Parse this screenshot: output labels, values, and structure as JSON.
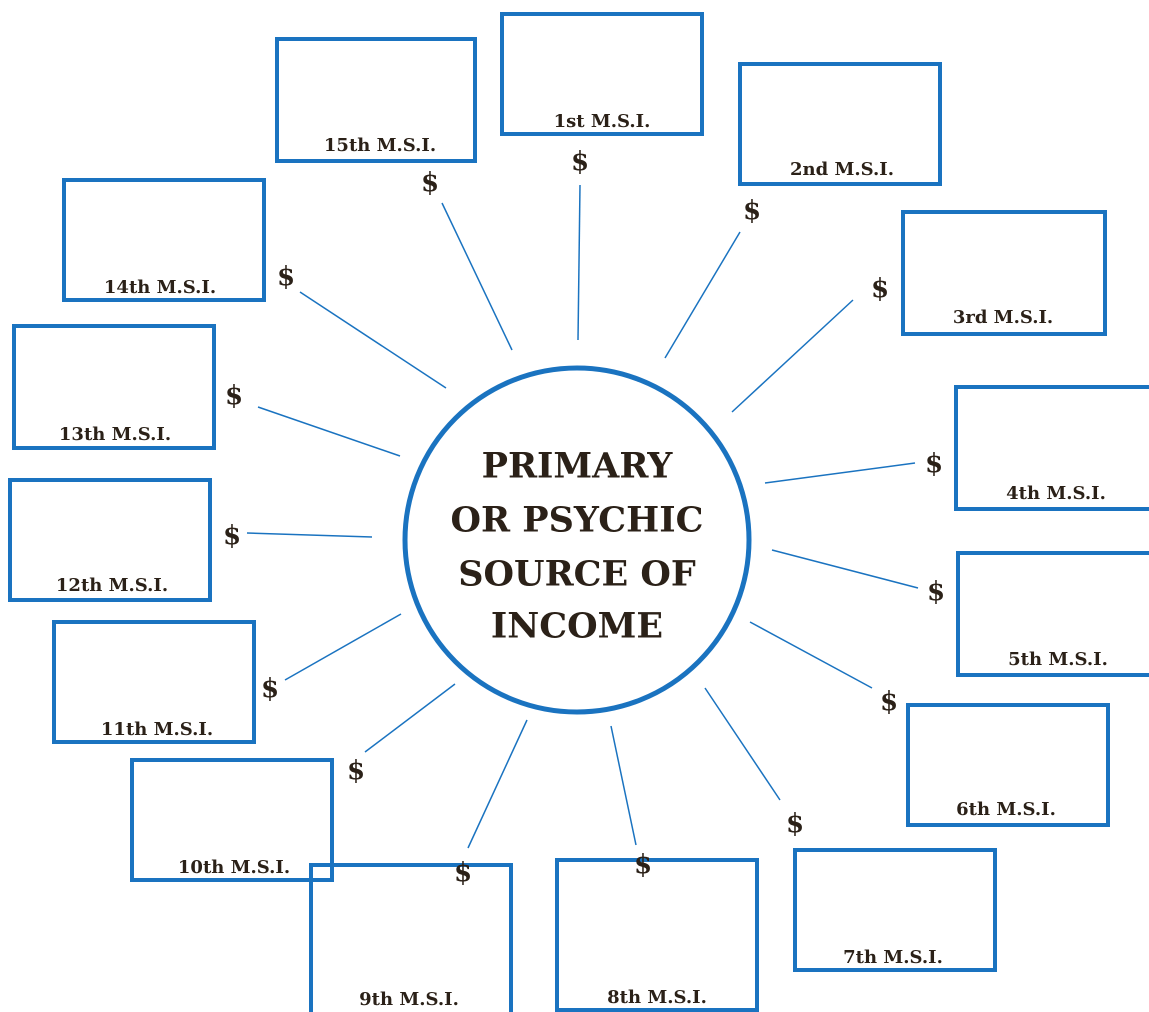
{
  "center": {
    "lines": [
      "PRIMARY",
      "OR PSYCHIC",
      "SOURCE OF",
      "INCOME"
    ]
  },
  "nodes": [
    {
      "label": "1st M.S.I.",
      "symbol": "$"
    },
    {
      "label": "2nd M.S.I.",
      "symbol": "$"
    },
    {
      "label": "3rd M.S.I.",
      "symbol": "$"
    },
    {
      "label": "4th M.S.I.",
      "symbol": "$"
    },
    {
      "label": "5th M.S.I.",
      "symbol": "$"
    },
    {
      "label": "6th M.S.I.",
      "symbol": "$"
    },
    {
      "label": "7th M.S.I.",
      "symbol": "$"
    },
    {
      "label": "8th M.S.I.",
      "symbol": "$"
    },
    {
      "label": "9th M.S.I.",
      "symbol": "$"
    },
    {
      "label": "10th M.S.I.",
      "symbol": "$"
    },
    {
      "label": "11th M.S.I.",
      "symbol": "$"
    },
    {
      "label": "12th M.S.I.",
      "symbol": "$"
    },
    {
      "label": "13th M.S.I.",
      "symbol": "$"
    },
    {
      "label": "14th M.S.I.",
      "symbol": "$"
    },
    {
      "label": "15th M.S.I.",
      "symbol": "$"
    }
  ]
}
